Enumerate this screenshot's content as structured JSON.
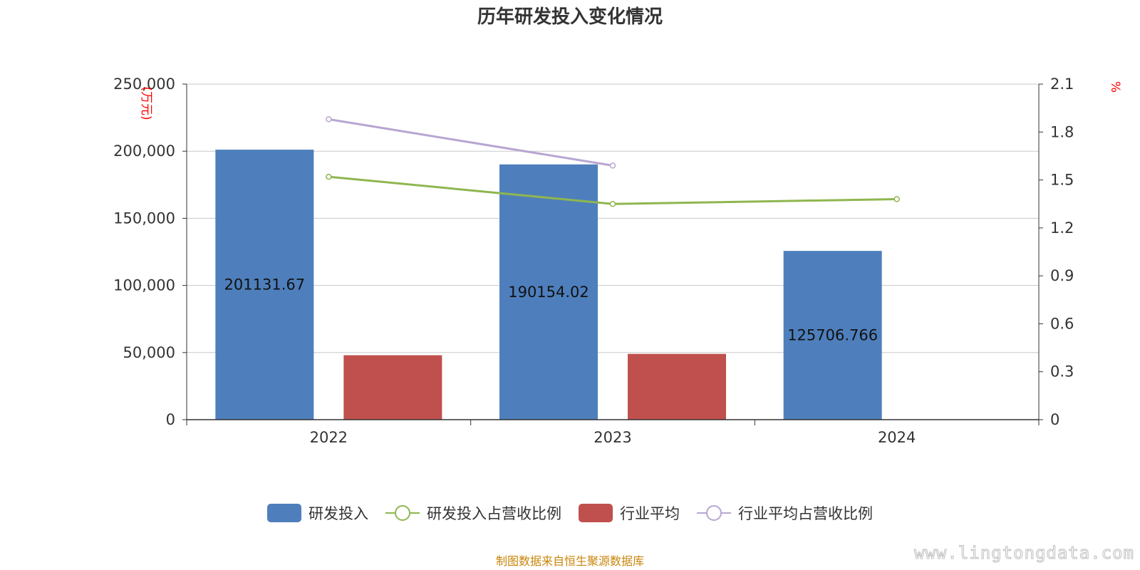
{
  "chart_data": {
    "type": "bar",
    "title": "历年研发投入变化情况",
    "categories": [
      "2022",
      "2023",
      "2024"
    ],
    "left_axis": {
      "unit": "(万元)",
      "ylim": [
        0,
        250000
      ],
      "ticks": [
        "0",
        "50,000",
        "100,000",
        "150,000",
        "200,000",
        "250,000"
      ],
      "tick_values": [
        0,
        50000,
        100000,
        150000,
        200000,
        250000
      ]
    },
    "right_axis": {
      "unit": "%",
      "ylim": [
        0,
        2.1
      ],
      "ticks": [
        "0",
        "0.3",
        "0.6",
        "0.9",
        "1.2",
        "1.5",
        "1.8",
        "2.1"
      ],
      "tick_values": [
        0,
        0.3,
        0.6,
        0.9,
        1.2,
        1.5,
        1.8,
        2.1
      ]
    },
    "series": [
      {
        "name": "研发投入",
        "type": "bar",
        "axis": "left",
        "color": "#4e7fbc",
        "values": [
          201131.67,
          190154.02,
          125706.766
        ],
        "labels": [
          "201131.67",
          "190154.02",
          "125706.766"
        ]
      },
      {
        "name": "研发投入占营收比例",
        "type": "line",
        "axis": "right",
        "color": "#8fb64f",
        "values": [
          1.52,
          1.35,
          1.38
        ]
      },
      {
        "name": "行业平均",
        "type": "bar",
        "axis": "left",
        "color": "#c0504d",
        "values": [
          48000,
          49000,
          null
        ]
      },
      {
        "name": "行业平均占营收比例",
        "type": "line",
        "axis": "right",
        "color": "#b8a6d1",
        "values": [
          1.88,
          1.59,
          null
        ]
      }
    ],
    "grid": true,
    "legend_position": "bottom"
  },
  "source_note": "制图数据来自恒生聚源数据库",
  "watermark": "www.lingtongdata.com"
}
